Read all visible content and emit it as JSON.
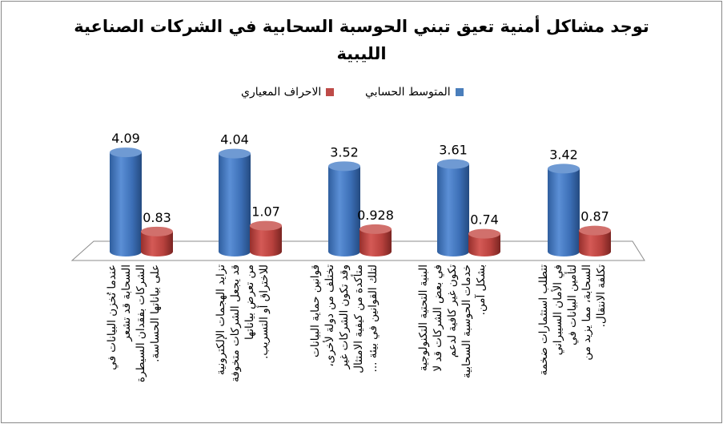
{
  "chart_data": {
    "type": "bar",
    "title_line1": "توجد مشاكل أمنية تعيق تبني الحوسبة السحابية في الشركات الصناعية",
    "title_line2": "الليبية",
    "series": [
      {
        "name": "المتوسط الحسابي",
        "color": "#4a7ebb",
        "values": [
          4.09,
          4.04,
          3.52,
          3.61,
          3.42
        ],
        "labels": [
          "4.09",
          "4.04",
          "3.52",
          "3.61",
          "3.42"
        ]
      },
      {
        "name": "الاحراف المعياري",
        "color": "#be4b48",
        "values": [
          0.83,
          1.07,
          0.928,
          0.74,
          0.87
        ],
        "labels": [
          "0.83",
          "1.07",
          "0.928",
          "0.74",
          "0.87"
        ]
      }
    ],
    "categories": [
      [
        "عندما تُخزن البيانات في",
        "السحابة قد تشعر",
        "الشركات بفقدان السيطرة",
        "على بياناتها الحساسة."
      ],
      [
        "تزايد الهجمات الإلكترونية",
        "قد يجعل الشركات متخوفة",
        "من تعرض بياناتها",
        "للاختراق أو التسريب."
      ],
      [
        "قوانين حماية البيانات",
        "تختلف من دولة لأخرى،",
        "وقد تكون الشركات غير",
        "متأكدة من كيفية الامتثال",
        "لتلك القوانين في بيئة ..."
      ],
      [
        "البنية التحتية التكنولوجية",
        "في بعض الشركات قد لا",
        "تكون غير كافية لدعم",
        "خدمات الحوسبة السحابية",
        "بشكل آمن."
      ],
      [
        "تتطلب استثمارات ضخمة",
        "في الأمان السيبراني",
        "لتأمين البيانات في",
        "السحابة، مما يزيد من",
        "تكلفة الانتقال."
      ]
    ],
    "ylim": [
      0,
      5
    ],
    "legend_position": "top-center",
    "style": "3d-cylinder"
  }
}
